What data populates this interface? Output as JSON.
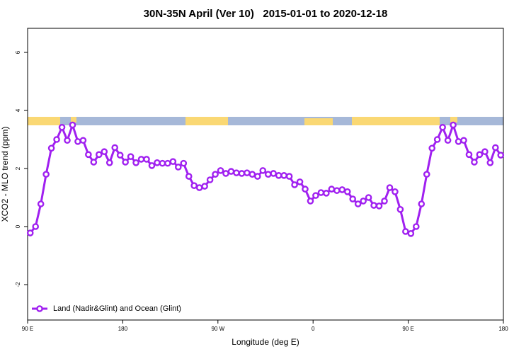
{
  "chart_data": {
    "type": "line",
    "title": "30N-35N April (Ver 10)   2015-01-01 to 2020-12-18",
    "x_label": "Longitude (deg E)",
    "y_label": "XCO2 - MLO trend (ppm)",
    "xlim": [
      90,
      540
    ],
    "ylim": [
      -3.22,
      6.83
    ],
    "xticks": [
      {
        "value": 90,
        "label": "90 E"
      },
      180,
      {
        "value": 270,
        "label": "90 W"
      },
      {
        "value": 360,
        "label": "0"
      },
      {
        "value": 450,
        "label": "90 E"
      },
      {
        "value": 540,
        "label": "180"
      }
    ],
    "yticks": [
      -2,
      0,
      2,
      4,
      6
    ],
    "legend": "bottomleft",
    "x": [
      92.5,
      97.5,
      102.5,
      107.5,
      112.5,
      117.5,
      122.5,
      127.5,
      132.5,
      137.5,
      142.5,
      147.5,
      152.5,
      157.5,
      162.5,
      167.5,
      172.5,
      177.5,
      182.5,
      187.5,
      192.5,
      197.5,
      202.5,
      207.5,
      212.5,
      217.5,
      222.5,
      227.5,
      232.5,
      237.5,
      242.5,
      247.5,
      252.5,
      257.5,
      262.5,
      267.5,
      272.5,
      277.5,
      282.5,
      287.5,
      292.5,
      297.5,
      302.5,
      307.5,
      312.5,
      317.5,
      322.5,
      327.5,
      332.5,
      337.5,
      342.5,
      347.5,
      352.5,
      357.5,
      362.5,
      367.5,
      372.5,
      377.5,
      382.5,
      387.5,
      392.5,
      397.5,
      402.5,
      407.5,
      412.5,
      417.5,
      422.5,
      427.5,
      432.5,
      437.5,
      442.5,
      447.5,
      452.5,
      457.5,
      462.5,
      467.5,
      472.5,
      477.5,
      482.5,
      487.5,
      492.5,
      497.5,
      502.5,
      507.5,
      512.5,
      517.5,
      522.5,
      527.5,
      532.5,
      537.5
    ],
    "series": [
      {
        "name": "Land (Nadir&Glint) and Ocean (Glint)",
        "color": "#a020f0",
        "values": [
          -0.22,
          0.0,
          0.78,
          1.8,
          2.7,
          3.0,
          3.42,
          2.97,
          3.5,
          2.93,
          2.97,
          2.48,
          2.22,
          2.48,
          2.58,
          2.2,
          2.72,
          2.46,
          2.22,
          2.41,
          2.2,
          2.32,
          2.32,
          2.1,
          2.2,
          2.18,
          2.18,
          2.24,
          2.05,
          2.18,
          1.73,
          1.41,
          1.34,
          1.39,
          1.61,
          1.8,
          1.93,
          1.83,
          1.9,
          1.85,
          1.83,
          1.85,
          1.8,
          1.73,
          1.93,
          1.8,
          1.83,
          1.76,
          1.76,
          1.73,
          1.44,
          1.54,
          1.29,
          0.88,
          1.07,
          1.17,
          1.15,
          1.29,
          1.24,
          1.27,
          1.2,
          0.95,
          0.78,
          0.88,
          1.0,
          0.73,
          0.71,
          0.88,
          1.34,
          1.2,
          0.59,
          -0.17,
          -0.24,
          0.0,
          0.78,
          1.8,
          2.7,
          3.0,
          3.42,
          2.97,
          3.5,
          2.93,
          2.97,
          2.48,
          2.22,
          2.48,
          2.58,
          2.2,
          2.72,
          2.46
        ]
      }
    ]
  }
}
